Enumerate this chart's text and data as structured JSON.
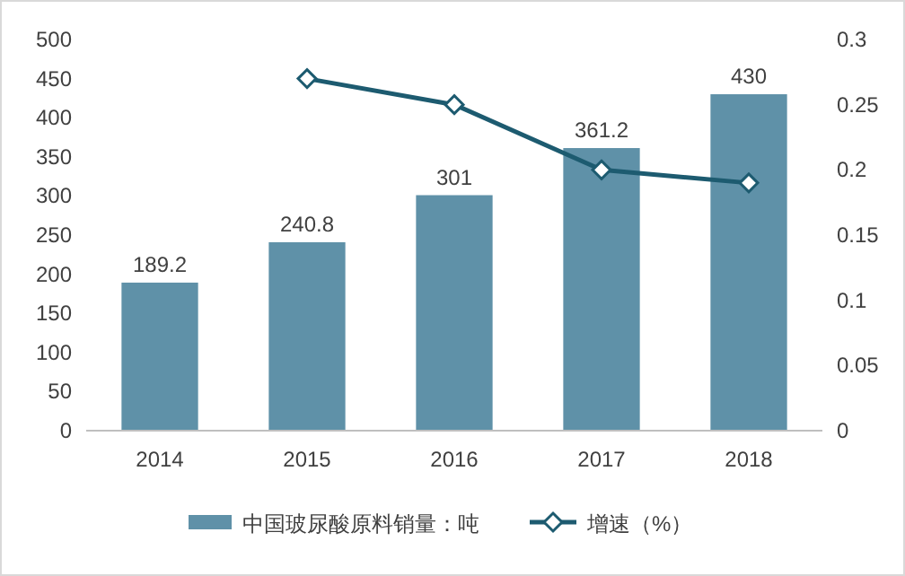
{
  "chart_data": {
    "type": "bar",
    "categories": [
      "2014",
      "2015",
      "2016",
      "2017",
      "2018"
    ],
    "series": [
      {
        "name": "中国玻尿酸原料销量：吨",
        "color": "#5f91a8",
        "values": [
          189.2,
          240.8,
          301,
          361.2,
          430
        ],
        "value_labels": [
          "189.2",
          "240.8",
          "301",
          "361.2",
          "430"
        ]
      },
      {
        "name": "增速（%）",
        "type": "line",
        "axis": "y2",
        "color": "#1d5b70",
        "marker": "diamond",
        "values": [
          null,
          0.27,
          0.25,
          0.2,
          0.19
        ]
      }
    ],
    "ylim": [
      0,
      500
    ],
    "yticks": [
      0,
      50,
      100,
      150,
      200,
      250,
      300,
      350,
      400,
      450,
      500
    ],
    "y2lim": [
      0,
      0.3
    ],
    "y2ticks": [
      0,
      0.05,
      0.1,
      0.15,
      0.2,
      0.25,
      0.3
    ],
    "legend": "bottom",
    "grid": false
  }
}
